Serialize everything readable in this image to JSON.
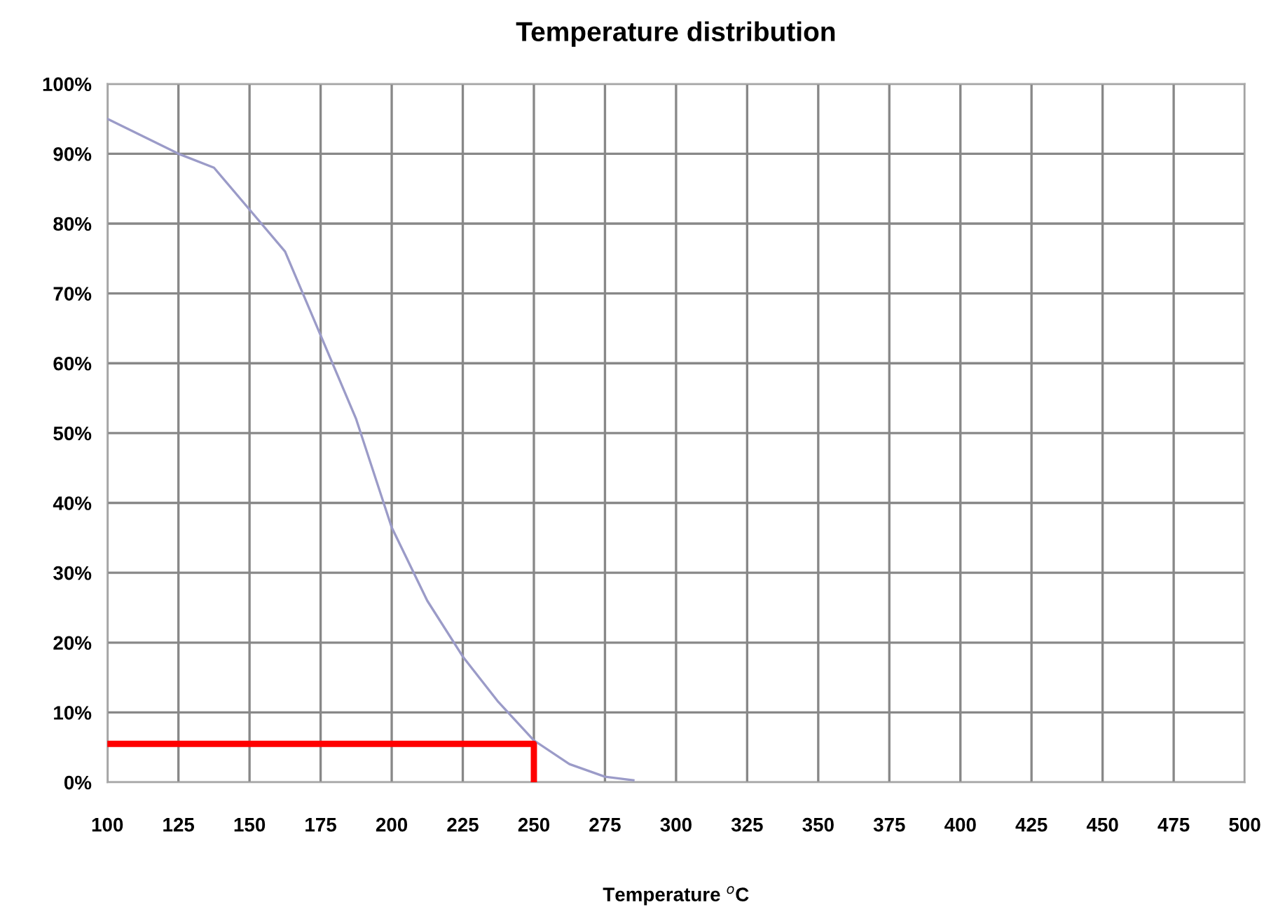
{
  "chart_data": {
    "type": "line",
    "title": "Temperature distribution",
    "xlabel": "Temperature $^{o}$C",
    "series": [
      {
        "color": "#9b9bc8",
        "x": [
          100,
          125,
          137.5,
          150,
          162.5,
          175,
          187.5,
          200,
          212.5,
          225,
          237.5,
          250,
          262.5,
          275,
          285
        ],
        "values": [
          95,
          90,
          88,
          82,
          76,
          64,
          52,
          36.5,
          26,
          18,
          11.5,
          6,
          2.6,
          0.8,
          0.3
        ]
      },
      {
        "color": "#ff0000",
        "x": [
          100,
          250,
          250
        ],
        "values": [
          5.5,
          5.5,
          0
        ]
      }
    ],
    "xlim": [
      100,
      500
    ],
    "xticks": [
      100,
      125,
      150,
      175,
      200,
      225,
      250,
      275,
      300,
      325,
      350,
      375,
      400,
      425,
      450,
      475,
      500
    ],
    "ylim": [
      0,
      100
    ],
    "yticks": [
      {
        "value": 0,
        "label": "0%"
      },
      {
        "value": 10,
        "label": "10%"
      },
      {
        "value": 20,
        "label": "20%"
      },
      {
        "value": 30,
        "label": "30%"
      },
      {
        "value": 40,
        "label": "40%"
      },
      {
        "value": 50,
        "label": "50%"
      },
      {
        "value": 60,
        "label": "60%"
      },
      {
        "value": 70,
        "label": "70%"
      },
      {
        "value": 80,
        "label": "80%"
      },
      {
        "value": 90,
        "label": "90%"
      },
      {
        "value": 100,
        "label": "100%"
      }
    ],
    "grid": true
  }
}
